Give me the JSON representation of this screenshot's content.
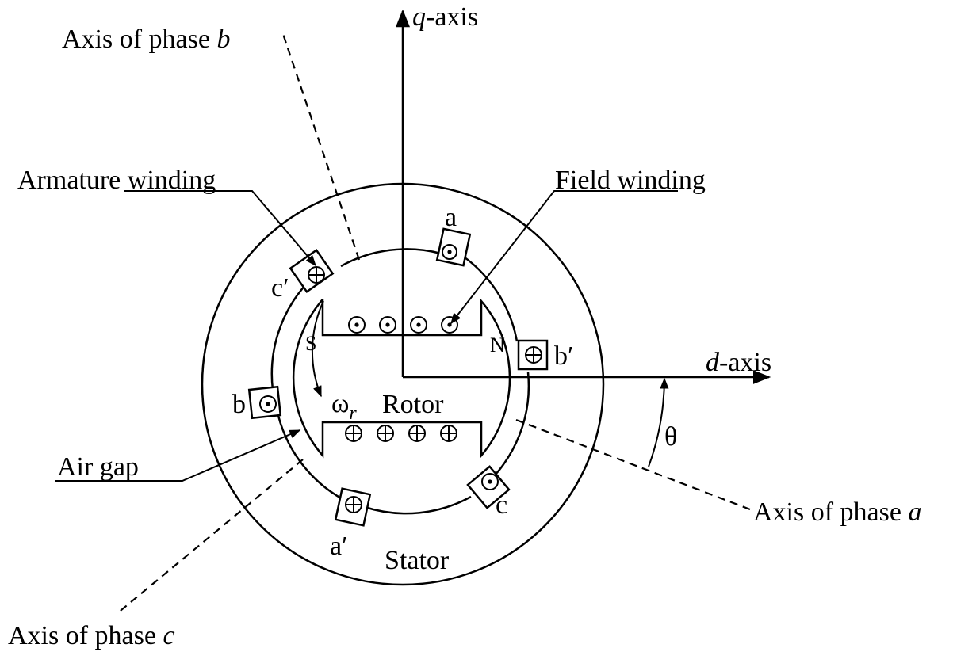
{
  "labels": {
    "q_axis_var": "q",
    "q_axis_suffix": "-axis",
    "d_axis_var": "d",
    "d_axis_suffix": "-axis",
    "axis_phase_b_prefix": "Axis of phase ",
    "axis_phase_b_var": "b",
    "axis_phase_a_prefix": "Axis of phase ",
    "axis_phase_a_var": "a",
    "axis_phase_c_prefix": "Axis of phase ",
    "axis_phase_c_var": "c",
    "armature_winding": "Armature winding",
    "field_winding": "Field winding",
    "air_gap": "Air gap",
    "rotor": "Rotor",
    "stator": "Stator",
    "omega": "ω",
    "omega_sub": "r",
    "theta": "θ",
    "pole_s": "S",
    "pole_n": "N",
    "coil_a": "a",
    "coil_a_prime": "a′",
    "coil_b": "b",
    "coil_b_prime": "b′",
    "coil_c": "c",
    "coil_c_prime": "c′"
  }
}
